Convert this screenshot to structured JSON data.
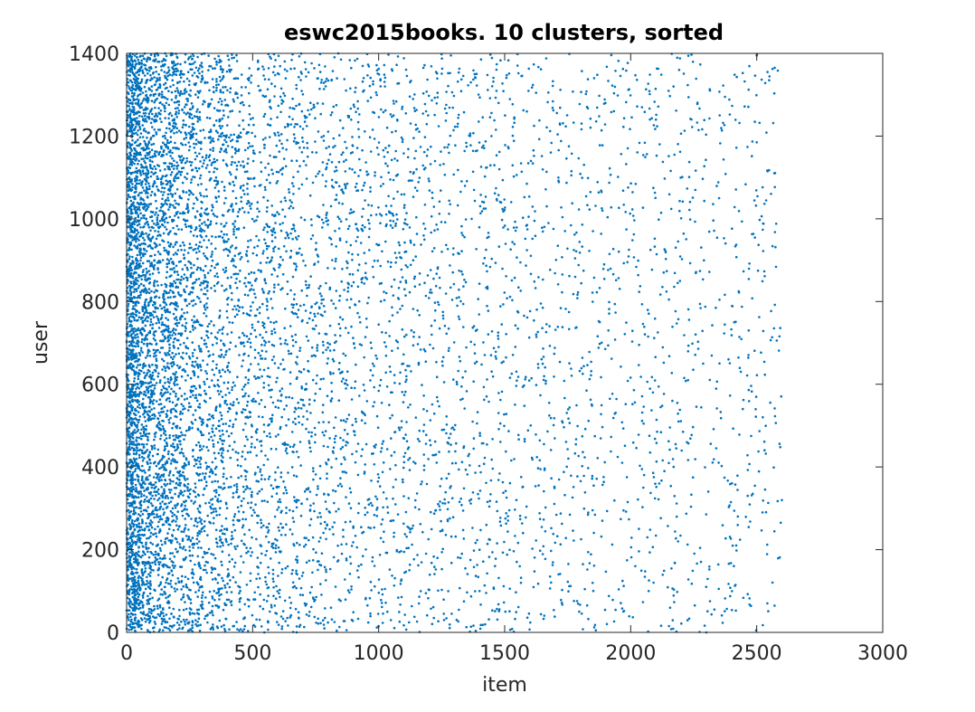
{
  "chart_data": {
    "type": "scatter",
    "title": "eswc2015books. 10 clusters, sorted",
    "xlabel": "item",
    "ylabel": "user",
    "xlim": [
      0,
      3000
    ],
    "ylim": [
      0,
      1400
    ],
    "xticks": [
      "0",
      "500",
      "1000",
      "1500",
      "2000",
      "2500",
      "3000"
    ],
    "yticks": [
      "0",
      "200",
      "400",
      "600",
      "800",
      "1000",
      "1200",
      "1400"
    ],
    "grid": false,
    "box": true,
    "marker_color": "#0072BD",
    "series": [
      {
        "density_profile": {
          "x_bins": [
            0,
            25,
            50,
            100,
            200,
            300,
            400,
            500,
            700,
            900,
            1100,
            1300,
            1500,
            1700,
            1900,
            2100,
            2300,
            2500,
            2600
          ],
          "relative_density": [
            1.0,
            0.8,
            0.55,
            0.38,
            0.27,
            0.2,
            0.15,
            0.12,
            0.09,
            0.075,
            0.065,
            0.055,
            0.045,
            0.04,
            0.035,
            0.035,
            0.03,
            0.03
          ],
          "x_max": 2600,
          "y_range": [
            0,
            1400
          ],
          "approx_point_count": 9000
        }
      }
    ]
  }
}
